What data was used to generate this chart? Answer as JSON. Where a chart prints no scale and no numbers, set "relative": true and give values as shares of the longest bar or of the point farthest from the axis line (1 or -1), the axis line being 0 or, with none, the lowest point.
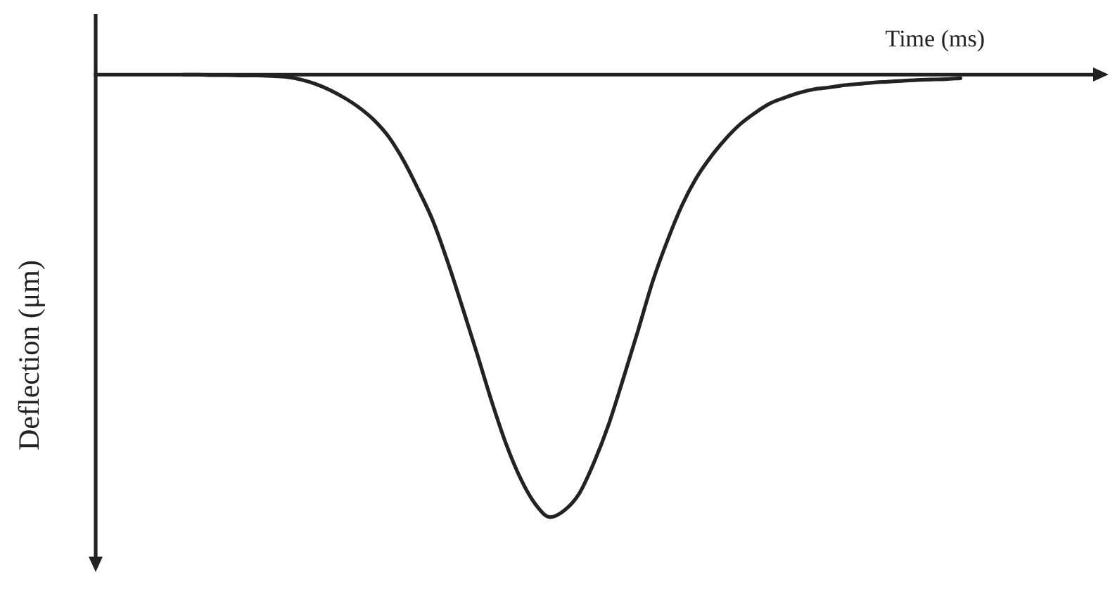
{
  "chart_data": {
    "type": "line",
    "xlabel": "Time (ms)",
    "ylabel": "Deflection (μm)",
    "relative": true,
    "tick_labels": false,
    "categories": [
      null,
      null,
      null,
      null,
      null,
      null,
      null,
      null,
      null,
      null,
      null,
      null,
      null,
      null,
      null,
      null,
      null,
      null,
      null,
      null,
      null,
      null,
      null,
      null,
      null,
      null,
      null,
      null,
      null,
      null,
      null,
      null,
      null,
      null,
      null,
      null,
      null,
      null,
      null,
      null,
      null,
      null,
      null,
      null,
      null,
      null,
      null,
      null,
      null,
      null,
      null,
      null,
      null,
      null,
      null,
      null,
      null,
      null,
      null,
      null,
      null,
      null,
      null,
      null,
      null,
      null,
      null,
      null,
      null,
      null
    ],
    "color": "#222222",
    "values": [
      null,
      null,
      null,
      null,
      null,
      null,
      0,
      0,
      -0.001,
      -0.001,
      -0.002,
      -0.002,
      -0.003,
      -0.005,
      -0.011,
      -0.021,
      -0.035,
      -0.053,
      -0.075,
      -0.103,
      -0.141,
      -0.194,
      -0.259,
      -0.33,
      -0.422,
      -0.524,
      -0.629,
      -0.737,
      -0.835,
      -0.914,
      -0.971,
      -1,
      -0.984,
      -0.946,
      -0.876,
      -0.79,
      -0.686,
      -0.578,
      -0.467,
      -0.375,
      -0.295,
      -0.232,
      -0.184,
      -0.144,
      -0.111,
      -0.086,
      -0.065,
      -0.052,
      -0.041,
      -0.033,
      -0.029,
      -0.024,
      -0.021,
      -0.018,
      -0.016,
      -0.014,
      -0.012,
      -0.011,
      -0.01,
      -0.008,
      null,
      null,
      null,
      null,
      null,
      null,
      null,
      null,
      null,
      null
    ]
  }
}
